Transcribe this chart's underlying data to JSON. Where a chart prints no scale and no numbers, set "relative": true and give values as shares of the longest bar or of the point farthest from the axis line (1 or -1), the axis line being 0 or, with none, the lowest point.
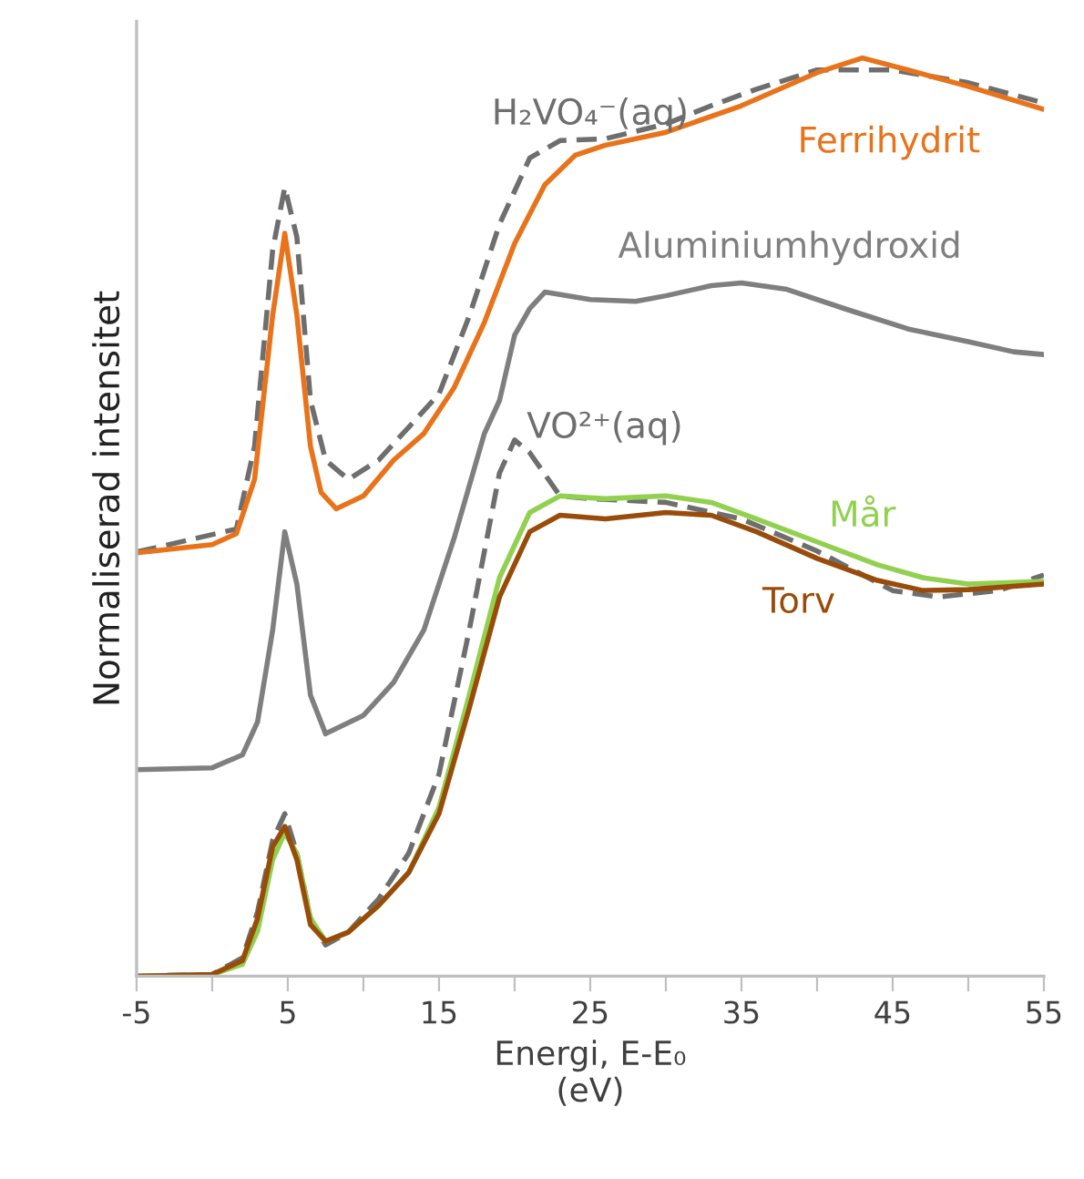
{
  "chart_data": {
    "type": "line",
    "relative": true,
    "xlabel": "Energi, E-E₀\n(eV)",
    "ylabel": "Normaliserad intensitet",
    "xlim": [
      -5,
      55
    ],
    "xticks": [
      -5,
      {
        "value": 0,
        "label": null
      },
      5,
      {
        "value": 10,
        "label": null
      },
      15,
      {
        "value": 20,
        "label": null
      },
      25,
      {
        "value": 30,
        "label": null
      },
      35,
      {
        "value": 40,
        "label": null
      },
      45,
      {
        "value": 50,
        "label": null
      },
      55
    ],
    "legend": false,
    "grid": false,
    "marker": "none",
    "line_style": "solid",
    "series": [
      {
        "name": "H₂VO₄⁻(aq)",
        "color": "#6e6e6e",
        "line_style": "dashed",
        "x": [
          -5,
          1.6,
          2.8,
          4,
          4.8,
          5.6,
          6.5,
          7.5,
          9,
          11,
          13,
          15,
          17,
          19,
          21,
          23,
          26,
          30,
          33,
          36,
          40,
          45,
          50,
          55
        ],
        "values": [
          0.462,
          0.487,
          0.577,
          0.791,
          0.859,
          0.805,
          0.627,
          0.562,
          0.541,
          0.562,
          0.598,
          0.634,
          0.719,
          0.819,
          0.891,
          0.91,
          0.912,
          0.928,
          0.948,
          0.966,
          0.987,
          0.987,
          0.973,
          0.951
        ]
      },
      {
        "name": "Ferrihydrit",
        "color": "#e8731a",
        "x": [
          -5,
          0,
          1.6,
          2.8,
          4,
          4.8,
          5.6,
          6.5,
          7.2,
          8.2,
          10,
          12,
          14,
          16,
          18,
          20,
          22,
          24,
          26,
          30,
          35,
          40,
          43,
          46,
          50,
          55
        ],
        "values": [
          0.461,
          0.47,
          0.482,
          0.541,
          0.72,
          0.809,
          0.72,
          0.577,
          0.527,
          0.509,
          0.523,
          0.562,
          0.591,
          0.641,
          0.712,
          0.798,
          0.862,
          0.894,
          0.905,
          0.919,
          0.948,
          0.984,
          1.0,
          0.987,
          0.969,
          0.944
        ]
      },
      {
        "name": "Aluminiumhydroxid",
        "color": "#7f7f7f",
        "x": [
          -5,
          0,
          2,
          3,
          4,
          4.8,
          5.6,
          6.5,
          7.5,
          10,
          12,
          14,
          16,
          18,
          19,
          20,
          21,
          22,
          25,
          28,
          30,
          33,
          35,
          38,
          42,
          46,
          50,
          53,
          55
        ],
        "values": [
          0.225,
          0.227,
          0.241,
          0.277,
          0.377,
          0.484,
          0.427,
          0.306,
          0.264,
          0.284,
          0.32,
          0.377,
          0.477,
          0.591,
          0.627,
          0.698,
          0.727,
          0.745,
          0.737,
          0.735,
          0.741,
          0.752,
          0.755,
          0.748,
          0.726,
          0.705,
          0.691,
          0.68,
          0.677
        ]
      },
      {
        "name": "VO²⁺(aq)",
        "color": "#6e6e6e",
        "line_style": "dashed",
        "x": [
          -5,
          0,
          2,
          3,
          4,
          4.8,
          5.6,
          6.5,
          7.5,
          9,
          11,
          13,
          15,
          17,
          19,
          20,
          21,
          23,
          25,
          30,
          35,
          40,
          45,
          48,
          52,
          55
        ],
        "values": [
          0.0,
          0.002,
          0.02,
          0.07,
          0.148,
          0.177,
          0.134,
          0.063,
          0.034,
          0.048,
          0.084,
          0.134,
          0.22,
          0.377,
          0.548,
          0.584,
          0.57,
          0.523,
          0.52,
          0.516,
          0.498,
          0.463,
          0.42,
          0.413,
          0.42,
          0.437
        ]
      },
      {
        "name": "Mår",
        "color": "#92d050",
        "x": [
          -5,
          0,
          2,
          3,
          4,
          4.8,
          5.6,
          6.5,
          7.5,
          9,
          11,
          13,
          15,
          17,
          19,
          21,
          23,
          26,
          30,
          33,
          36,
          40,
          44,
          47,
          50,
          55
        ],
        "values": [
          0.0,
          0.002,
          0.013,
          0.049,
          0.127,
          0.156,
          0.134,
          0.063,
          0.038,
          0.048,
          0.077,
          0.113,
          0.184,
          0.306,
          0.434,
          0.505,
          0.523,
          0.52,
          0.523,
          0.516,
          0.498,
          0.473,
          0.448,
          0.434,
          0.427,
          0.43
        ]
      },
      {
        "name": "Torv",
        "color": "#994c0a",
        "x": [
          -5,
          0,
          2,
          3,
          4,
          4.8,
          5.6,
          6.5,
          7.5,
          9,
          11,
          13,
          15,
          17,
          19,
          21,
          23,
          26,
          30,
          33,
          36,
          40,
          44,
          47,
          50,
          55
        ],
        "values": [
          0.0,
          0.002,
          0.017,
          0.063,
          0.141,
          0.163,
          0.127,
          0.056,
          0.038,
          0.048,
          0.077,
          0.113,
          0.177,
          0.292,
          0.413,
          0.484,
          0.502,
          0.498,
          0.505,
          0.502,
          0.484,
          0.455,
          0.431,
          0.42,
          0.421,
          0.427
        ]
      }
    ]
  }
}
